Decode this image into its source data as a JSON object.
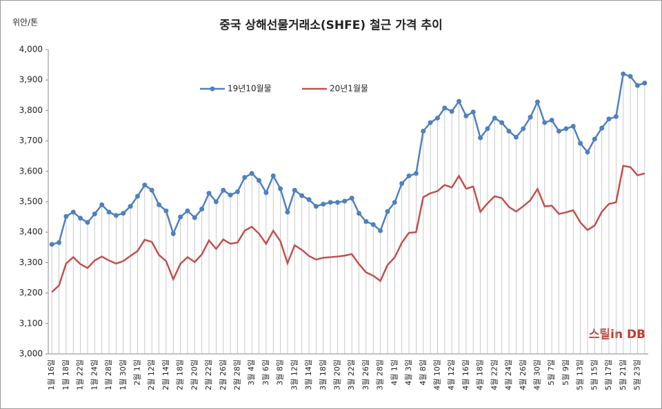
{
  "chart_data": {
    "type": "line",
    "title": "중국 상해선물거래소(SHFE) 철근 가격 추이",
    "y_axis_label": "위안/톤",
    "annotation": "스틸in DB",
    "categories": [
      "1월 16일",
      null,
      "1월 18일",
      null,
      "1월 22일",
      null,
      "1월 24일",
      null,
      "1월 28일",
      null,
      "1월 30일",
      null,
      "2월 1일",
      null,
      "2월 12일",
      null,
      "2월 14일",
      null,
      "2월 18일",
      null,
      "2월 20일",
      null,
      "2월 22일",
      null,
      "2월 26일",
      null,
      "2월 28일",
      null,
      "3월 4일",
      null,
      "3월 6일",
      null,
      "3월 8일",
      null,
      "3월 12일",
      null,
      "3월 14일",
      null,
      "3월 18일",
      null,
      "3월 20일",
      null,
      "3월 22일",
      null,
      "3월 26일",
      null,
      "3월 28일",
      null,
      "4월 1일",
      null,
      "4월 3일",
      null,
      "4월 8일",
      null,
      "4월 10일",
      null,
      "4월 12일",
      null,
      "4월 16일",
      null,
      "4월 18일",
      null,
      "4월 22일",
      null,
      "4월 24일",
      null,
      "4월 26일",
      null,
      "4월 30일",
      null,
      "5월 7일",
      null,
      "5월 9일",
      null,
      "5월 13일",
      null,
      "5월 15일",
      null,
      "5월 17일",
      null,
      "5월 21일",
      null,
      "5월 23일",
      null
    ],
    "series": [
      {
        "name": "19년10월물",
        "color": "#4f81bd",
        "values": [
          3360,
          3366,
          3452,
          3466,
          3446,
          3432,
          3460,
          3490,
          3466,
          3455,
          3462,
          3485,
          3518,
          3555,
          3538,
          3490,
          3470,
          3395,
          3450,
          3470,
          3448,
          3476,
          3528,
          3500,
          3538,
          3522,
          3533,
          3580,
          3593,
          3570,
          3530,
          3585,
          3543,
          3466,
          3538,
          3520,
          3507,
          3485,
          3492,
          3498,
          3498,
          3502,
          3512,
          3462,
          3435,
          3425,
          3405,
          3468,
          3498,
          3560,
          3585,
          3593,
          3732,
          3760,
          3775,
          3808,
          3797,
          3830,
          3782,
          3795,
          3710,
          3740,
          3775,
          3760,
          3732,
          3712,
          3740,
          3778,
          3828,
          3760,
          3768,
          3732,
          3740,
          3748,
          3692,
          3663,
          3706,
          3742,
          3772,
          3780,
          3920,
          3912,
          3882,
          3890
        ]
      },
      {
        "name": "20년1월물",
        "color": "#c0504d",
        "values": [
          3203,
          3225,
          3297,
          3318,
          3295,
          3282,
          3307,
          3320,
          3307,
          3297,
          3305,
          3322,
          3338,
          3375,
          3368,
          3325,
          3305,
          3245,
          3296,
          3318,
          3302,
          3327,
          3373,
          3345,
          3376,
          3362,
          3366,
          3405,
          3418,
          3395,
          3362,
          3405,
          3370,
          3298,
          3357,
          3342,
          3322,
          3310,
          3316,
          3318,
          3320,
          3323,
          3328,
          3295,
          3268,
          3257,
          3240,
          3292,
          3317,
          3365,
          3398,
          3400,
          3515,
          3528,
          3535,
          3555,
          3547,
          3585,
          3543,
          3550,
          3467,
          3495,
          3518,
          3512,
          3483,
          3468,
          3485,
          3505,
          3542,
          3485,
          3487,
          3460,
          3465,
          3472,
          3432,
          3407,
          3422,
          3467,
          3493,
          3498,
          3618,
          3614,
          3587,
          3593
        ]
      }
    ],
    "ylim": [
      3000,
      4000
    ],
    "yticks": [
      {
        "value": 3000,
        "label": "3,000"
      },
      {
        "value": 3100,
        "label": "3,100"
      },
      {
        "value": 3200,
        "label": "3,200"
      },
      {
        "value": 3300,
        "label": "3,300"
      },
      {
        "value": 3400,
        "label": "3,400"
      },
      {
        "value": 3500,
        "label": "3,500"
      },
      {
        "value": 3600,
        "label": "3,600"
      },
      {
        "value": 3700,
        "label": "3,700"
      },
      {
        "value": 3800,
        "label": "3,800"
      },
      {
        "value": 3900,
        "label": "3,900"
      },
      {
        "value": 4000,
        "label": "4,000"
      }
    ],
    "grid": false,
    "drop_lines": true
  }
}
